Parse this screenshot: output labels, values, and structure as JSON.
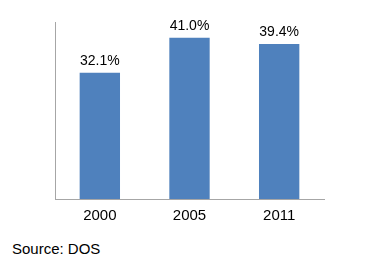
{
  "chart_data": {
    "type": "bar",
    "categories": [
      "2000",
      "2005",
      "2011"
    ],
    "values": [
      32.1,
      41.0,
      39.4
    ],
    "value_labels": [
      "32.1%",
      "41.0%",
      "39.4%"
    ],
    "data_labels": true,
    "color": "#4f81bd",
    "ylim": [
      0,
      45
    ],
    "grid": false,
    "tick_labels": "x",
    "annotation": "Source: DOS"
  }
}
